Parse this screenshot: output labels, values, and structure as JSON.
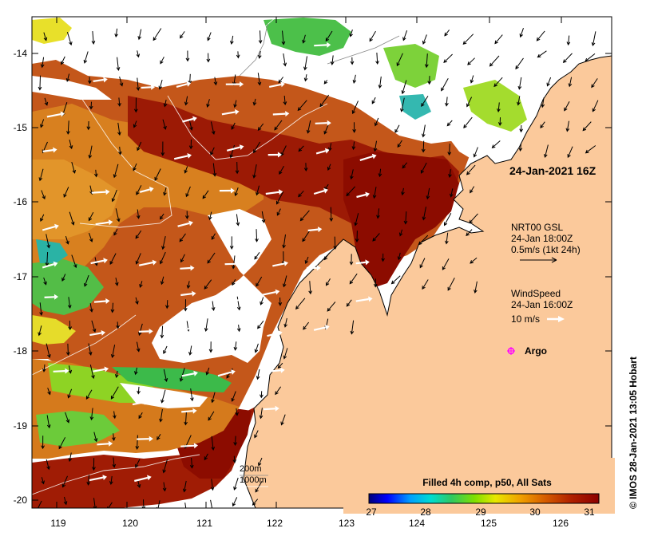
{
  "map": {
    "title": "24-Jan-2021 16Z",
    "lat_ticks": [
      "-14",
      "-15",
      "-16",
      "-17",
      "-18",
      "-19",
      "-20"
    ],
    "lon_ticks": [
      "119",
      "120",
      "121",
      "122",
      "123",
      "124",
      "125",
      "126"
    ],
    "colors": {
      "land": "#fbc99b",
      "no_data": "#ffffff",
      "coast": "#000000",
      "contour": "#ffffff",
      "current_vector": "#000000",
      "wind_vector": "#ffffff",
      "argo_marker": "#ff00ff"
    }
  },
  "legend": {
    "current": {
      "line1": "NRT00 GSL",
      "line2": "24-Jan 18:00Z",
      "line3": "0.5m/s (1kt 24h)"
    },
    "wind": {
      "line1": "WindSpeed",
      "line2": "24-Jan 16:00Z",
      "line3": "10 m/s"
    },
    "argo": {
      "label": "Argo",
      "icon": "argo-float-marker"
    },
    "isobaths": {
      "line1": "200m",
      "line2": "1000m"
    }
  },
  "colorbar": {
    "title": "Filled 4h comp, p50, All Sats",
    "ticks": [
      "27",
      "28",
      "29",
      "30",
      "31"
    ],
    "range": [
      27,
      31.5
    ],
    "colors": [
      "#00007a",
      "#0000ff",
      "#00a0ff",
      "#00dcd0",
      "#30c860",
      "#80e000",
      "#e8e800",
      "#f0a000",
      "#d86000",
      "#b02000",
      "#8c0000"
    ]
  },
  "credit": "© IMOS 28-Jan-2021 13:05 Hobart"
}
